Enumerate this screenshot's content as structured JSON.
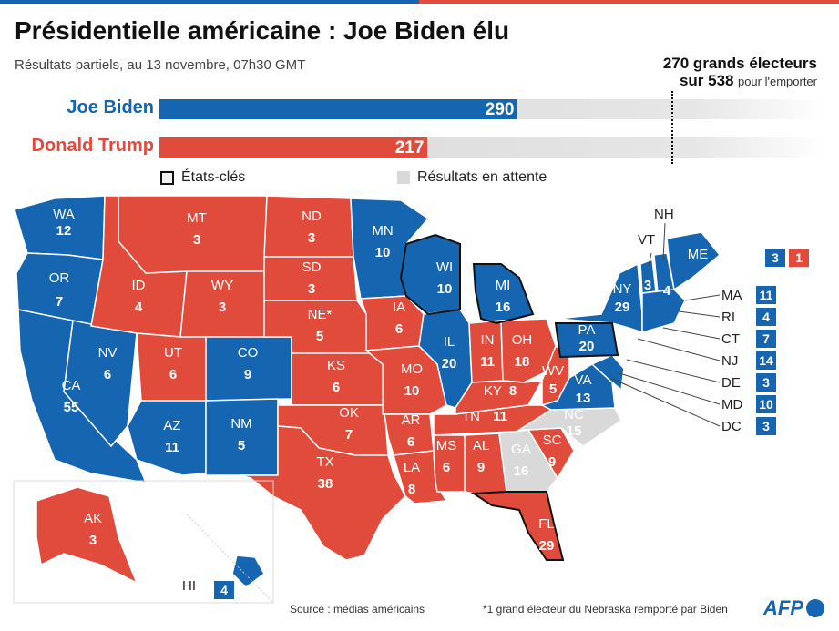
{
  "title": "Présidentielle américaine : Joe Biden élu",
  "subtitle": "Résultats partiels, au 13 novembre, 07h30 GMT",
  "threshold": {
    "line1": "270 grands électeurs",
    "line2_bold": "sur 538",
    "line2_small": "pour l'emporter"
  },
  "colors": {
    "biden": "#1565b0",
    "trump": "#e04b3c",
    "pending": "#d9d9d9",
    "key_state_border": "#111111"
  },
  "candidates": [
    {
      "name": "Joe Biden",
      "electors": 290,
      "color": "#1565b0"
    },
    {
      "name": "Donald Trump",
      "electors": 217,
      "color": "#e04b3c"
    }
  ],
  "total_electors": 538,
  "legend": {
    "key_states": "États-clés",
    "pending": "Résultats en attente"
  },
  "states": {
    "WA": {
      "label": "WA",
      "ev": 12,
      "winner": "biden"
    },
    "OR": {
      "label": "OR",
      "ev": 7,
      "winner": "biden"
    },
    "CA": {
      "label": "CA",
      "ev": 55,
      "winner": "biden"
    },
    "NV": {
      "label": "NV",
      "ev": 6,
      "winner": "biden"
    },
    "ID": {
      "label": "ID",
      "ev": 4,
      "winner": "trump"
    },
    "MT": {
      "label": "MT",
      "ev": 3,
      "winner": "trump"
    },
    "WY": {
      "label": "WY",
      "ev": 3,
      "winner": "trump"
    },
    "UT": {
      "label": "UT",
      "ev": 6,
      "winner": "trump"
    },
    "CO": {
      "label": "CO",
      "ev": 9,
      "winner": "biden"
    },
    "AZ": {
      "label": "AZ",
      "ev": 11,
      "winner": "biden"
    },
    "NM": {
      "label": "NM",
      "ev": 5,
      "winner": "biden"
    },
    "ND": {
      "label": "ND",
      "ev": 3,
      "winner": "trump"
    },
    "SD": {
      "label": "SD",
      "ev": 3,
      "winner": "trump"
    },
    "NE": {
      "label": "NE*",
      "ev": 5,
      "winner": "trump"
    },
    "KS": {
      "label": "KS",
      "ev": 6,
      "winner": "trump"
    },
    "OK": {
      "label": "OK",
      "ev": 7,
      "winner": "trump"
    },
    "TX": {
      "label": "TX",
      "ev": 38,
      "winner": "trump"
    },
    "MN": {
      "label": "MN",
      "ev": 10,
      "winner": "biden"
    },
    "IA": {
      "label": "IA",
      "ev": 6,
      "winner": "trump"
    },
    "MO": {
      "label": "MO",
      "ev": 10,
      "winner": "trump"
    },
    "AR": {
      "label": "AR",
      "ev": 6,
      "winner": "trump"
    },
    "LA": {
      "label": "LA",
      "ev": 8,
      "winner": "trump"
    },
    "WI": {
      "label": "WI",
      "ev": 10,
      "winner": "biden"
    },
    "IL": {
      "label": "IL",
      "ev": 20,
      "winner": "biden"
    },
    "MI": {
      "label": "MI",
      "ev": 16,
      "winner": "biden"
    },
    "IN": {
      "label": "IN",
      "ev": 11,
      "winner": "trump"
    },
    "OH": {
      "label": "OH",
      "ev": 18,
      "winner": "trump"
    },
    "KY": {
      "label": "KY",
      "ev": 8,
      "winner": "trump"
    },
    "TN": {
      "label": "TN",
      "ev": 11,
      "winner": "trump"
    },
    "MS": {
      "label": "MS",
      "ev": 6,
      "winner": "trump"
    },
    "AL": {
      "label": "AL",
      "ev": 9,
      "winner": "trump"
    },
    "GA": {
      "label": "GA",
      "ev": 16,
      "winner": "pending"
    },
    "FL": {
      "label": "FL",
      "ev": 29,
      "winner": "trump"
    },
    "SC": {
      "label": "SC",
      "ev": 9,
      "winner": "trump"
    },
    "NC": {
      "label": "NC",
      "ev": 15,
      "winner": "pending"
    },
    "VA": {
      "label": "VA",
      "ev": 13,
      "winner": "biden"
    },
    "WV": {
      "label": "WV",
      "ev": 5,
      "winner": "trump"
    },
    "PA": {
      "label": "PA",
      "ev": 20,
      "winner": "biden"
    },
    "NY": {
      "label": "NY",
      "ev": 29,
      "winner": "biden"
    },
    "VT": {
      "label": "VT",
      "ev": 3,
      "winner": "biden"
    },
    "NH": {
      "label": "NH",
      "ev": 4,
      "winner": "biden"
    },
    "ME": {
      "label": "ME",
      "ev_biden": 3,
      "ev_trump": 1,
      "winner": "biden"
    },
    "AK": {
      "label": "AK",
      "ev": 3,
      "winner": "trump"
    },
    "HI": {
      "label": "HI",
      "ev": 4,
      "winner": "biden"
    }
  },
  "small_states": [
    {
      "label": "MA",
      "ev": 11,
      "winner": "biden"
    },
    {
      "label": "RI",
      "ev": 4,
      "winner": "biden"
    },
    {
      "label": "CT",
      "ev": 7,
      "winner": "biden"
    },
    {
      "label": "NJ",
      "ev": 14,
      "winner": "biden"
    },
    {
      "label": "DE",
      "ev": 3,
      "winner": "biden"
    },
    {
      "label": "MD",
      "ev": 10,
      "winner": "biden"
    },
    {
      "label": "DC",
      "ev": 3,
      "winner": "biden"
    }
  ],
  "footer": {
    "source": "Source : médias américains",
    "note": "*1 grand électeur du Nebraska remporté par Biden",
    "logo": "AFP"
  }
}
